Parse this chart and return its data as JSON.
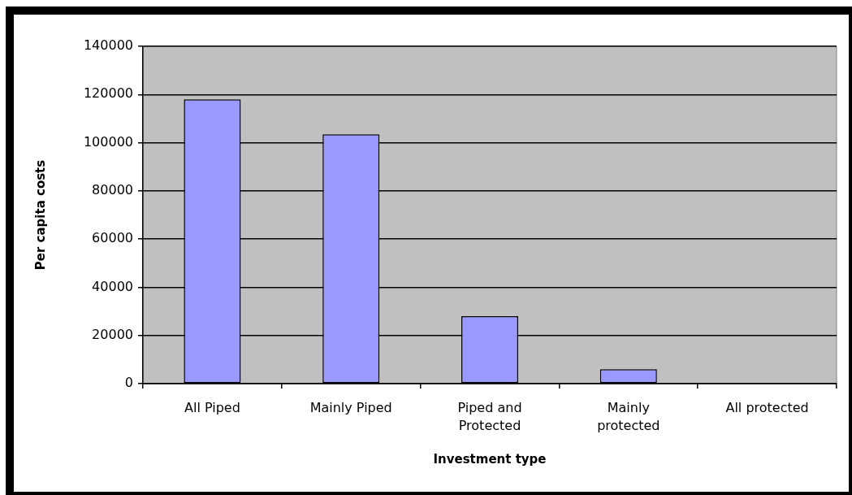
{
  "chart_data": {
    "type": "bar",
    "xlabel": "Investment type",
    "ylabel": "Per capita costs",
    "categories": [
      "All Piped",
      "Mainly Piped",
      "Piped and Protected",
      "Mainly protected",
      "All protected"
    ],
    "values": [
      118000,
      103500,
      28000,
      6000,
      0
    ],
    "color": "#9999ff",
    "ylim": [
      0,
      140000
    ],
    "yticks": [
      0,
      20000,
      40000,
      60000,
      80000,
      100000,
      120000,
      140000
    ],
    "grid": "y"
  }
}
